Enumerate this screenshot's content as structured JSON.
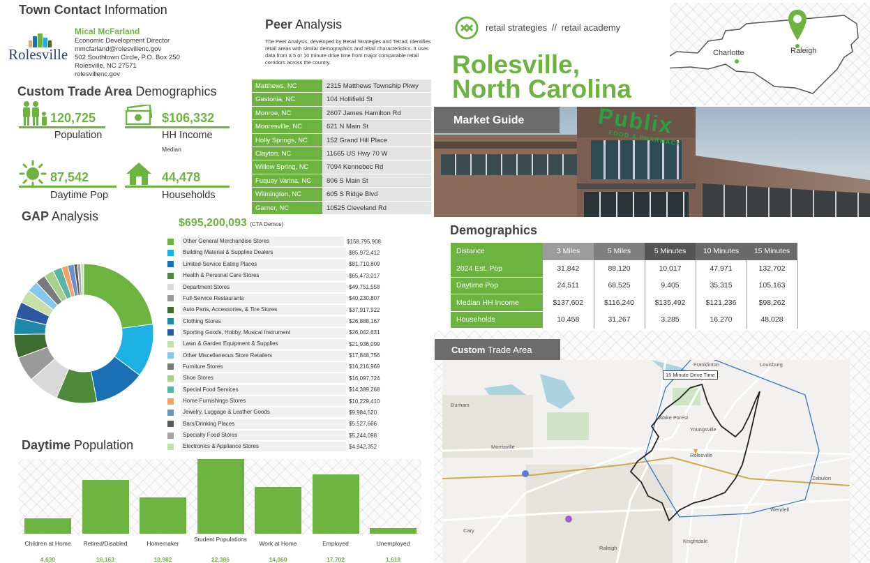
{
  "contact": {
    "section_title_bold": "Town Contact",
    "section_title_rest": "Information",
    "logo_text": "Rolesville",
    "name": "Mical McFarland",
    "role": "Economic Development Director",
    "email": "mmcfarland@rolesvillenc.gov",
    "address1": "502 Southtown Circle, P.O. Box 250",
    "address2": "Rolesville, NC 27571",
    "website": "rolesvillenc.gov"
  },
  "trade_demo": {
    "title_bold": "Custom Trade Area",
    "title_rest": "Demographics",
    "stats": [
      {
        "value": "120,725",
        "label": "Population",
        "icon": "people-icon"
      },
      {
        "value": "$106,332",
        "label": "HH Income",
        "sublabel": "Median",
        "icon": "money-icon"
      },
      {
        "value": "87,542",
        "label": "Daytime Pop",
        "icon": "sun-icon"
      },
      {
        "value": "44,478",
        "label": "Households",
        "icon": "house-icon"
      }
    ]
  },
  "peer": {
    "title_bold": "Peer",
    "title_rest": "Analysis",
    "description": "The Peer Analysis, developed by Retail Strategies and Tetrad, identifies retail areas with similar demographics and retail characteristics. It uses data from a 5 or 10 minute drive time from major comparable retail corridors across the country.",
    "rows": [
      {
        "city": "Matthews, NC",
        "address": "2315 Matthews Township Pkwy"
      },
      {
        "city": "Gastonia, NC",
        "address": "104 Hollifield St"
      },
      {
        "city": "Monroe, NC",
        "address": "2607 James Hamilton Rd"
      },
      {
        "city": "Mooresville, NC",
        "address": "621 N Main St"
      },
      {
        "city": "Holly Springs, NC",
        "address": "152 Grand Hill Place"
      },
      {
        "city": "Clayton, NC",
        "address": "11665 US Hwy 70 W"
      },
      {
        "city": "Willow Spring, NC",
        "address": "7094 Kennebec Rd"
      },
      {
        "city": "Fuquay Varina, NC",
        "address": "806 S Main St"
      },
      {
        "city": "Wilmington, NC",
        "address": "605 S Ridge Blvd"
      },
      {
        "city": "Garner, NC",
        "address": "10525 Cleveland Rd"
      }
    ]
  },
  "brand": {
    "name1": "retail strategies",
    "separator": "//",
    "name2": "retail academy",
    "city_line1": "Rolesville,",
    "city_line2": "North Carolina",
    "map_labels": {
      "charlotte": "Charlotte",
      "raleigh": "Raleigh"
    }
  },
  "market_guide": {
    "label": "Market Guide",
    "store_sign": "Publix",
    "store_sub": "FOOD & PHARMACY"
  },
  "gap": {
    "title_bold": "GAP",
    "title_rest": "Analysis",
    "total": "$695,200,093",
    "total_note": "(CTA Demos)",
    "items": [
      {
        "name": "Other General Merchandise Stores",
        "value": "$158,795,908",
        "color": "#6db33f"
      },
      {
        "name": "Building Material & Supplies Dealers",
        "value": "$85,972,412",
        "color": "#1cb0e3"
      },
      {
        "name": "Limited-Service Eating Places",
        "value": "$81,710,809",
        "color": "#1a6fb5"
      },
      {
        "name": "Health & Personal Care Stores",
        "value": "$65,473,017",
        "color": "#4e8a3a"
      },
      {
        "name": "Department Stores",
        "value": "$49,751,558",
        "color": "#d9d9d9"
      },
      {
        "name": "Full-Service Restaurants",
        "value": "$40,230,807",
        "color": "#9a9a9a"
      },
      {
        "name": "Auto Parts, Accessories, & Tire Stores",
        "value": "$37,917,922",
        "color": "#3e6b2e"
      },
      {
        "name": "Clothing Stores",
        "value": "$26,888,167",
        "color": "#1e88a8"
      },
      {
        "name": "Sporting Goods, Hobby, Musical Instrument",
        "value": "$26,042,631",
        "color": "#2c5aa0"
      },
      {
        "name": "Lawn & Garden Equipment & Supplies",
        "value": "$21,936,099",
        "color": "#c6e0a8"
      },
      {
        "name": "Other Miscellaneous Store Retailers",
        "value": "$17,848,756",
        "color": "#86c7ec"
      },
      {
        "name": "Furniture Stores",
        "value": "$16,216,969",
        "color": "#7a7a7a"
      },
      {
        "name": "Shoe Stores",
        "value": "$16,097,724",
        "color": "#a8d08d"
      },
      {
        "name": "Special Food Services",
        "value": "$14,389,268",
        "color": "#5ab4a6"
      },
      {
        "name": "Home Furnishings Stores",
        "value": "$10,229,410",
        "color": "#f4a262"
      },
      {
        "name": "Jewelry, Luggage & Leather Goods",
        "value": "$9,984,520",
        "color": "#6e8fc7"
      },
      {
        "name": "Bars/Drinking Places",
        "value": "$5,527,666",
        "color": "#5a5a5a"
      },
      {
        "name": "Specialty Food Stores",
        "value": "$5,244,098",
        "color": "#a6a6a6"
      },
      {
        "name": "Electronics & Appliance Stores",
        "value": "$4,942,352",
        "color": "#c5dfb4"
      }
    ]
  },
  "demographics": {
    "title": "Demographics",
    "headers": [
      "Distance",
      "3 Miles",
      "5 Miles",
      "5 Minutes",
      "10 Minutes",
      "15 Minutes"
    ],
    "rows": [
      {
        "label": "2024 Est. Pop",
        "values": [
          "31,842",
          "88,120",
          "10,017",
          "47,971",
          "132,702"
        ]
      },
      {
        "label": "Daytime Pop",
        "values": [
          "24,511",
          "68,525",
          "9,405",
          "35,315",
          "105,163"
        ]
      },
      {
        "label": "Median HH Income",
        "values": [
          "$137,602",
          "$116,240",
          "$135,492",
          "$121,236",
          "$98,262"
        ]
      },
      {
        "label": "Households",
        "values": [
          "10,458",
          "31,267",
          "3,285",
          "16,270",
          "48,028"
        ]
      }
    ]
  },
  "trade_area": {
    "title_bold": "Custom",
    "title_rest": "Trade Area",
    "drive_time_label": "15 Minute Drive Time",
    "places": [
      "Durham",
      "Raleigh",
      "Wake Forest",
      "Knightdale",
      "Zebulon",
      "Franklinton",
      "Louisburg",
      "Youngsville",
      "Wendell",
      "Cary",
      "Morrisville",
      "Rolesville"
    ]
  },
  "daytime": {
    "title_bold": "Daytime",
    "title_rest": "Population"
  },
  "chart_data": {
    "type": "bar",
    "title": "Daytime Population",
    "categories": [
      "Children at Home",
      "Retired/Disabled",
      "Homemaker",
      "Student Populations",
      "Work at Home",
      "Employed",
      "Unemployed"
    ],
    "values": [
      4630,
      16163,
      10982,
      22386,
      14060,
      17702,
      1618
    ],
    "value_labels": [
      "4,630",
      "16,163",
      "10,982",
      "22,386",
      "14,060",
      "17,702",
      "1,618"
    ],
    "ylim": [
      0,
      22386
    ],
    "colors": {
      "bar": "#6db33f"
    }
  }
}
